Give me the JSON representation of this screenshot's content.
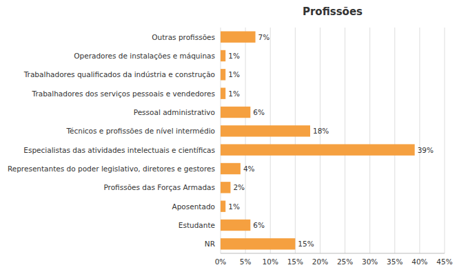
{
  "chart_data": {
    "type": "bar",
    "orientation": "horizontal",
    "title": "Profissões",
    "categories": [
      "NR",
      "Estudante",
      "Aposentado",
      "Profissões das Forças Armadas",
      "Representantes do poder legislativo, diretores e gestores",
      "Especialistas das atividades intelectuais e científicas",
      "Técnicos e profissões de nível intermédio",
      "Pessoal administrativo",
      "Trabalhadores dos serviços pessoais e vendedores",
      "Trabalhadores qualificados da indústria e construção",
      "Operadores de instalações e máquinas",
      "Outras profissões"
    ],
    "values": [
      15,
      6,
      1,
      2,
      4,
      39,
      18,
      6,
      1,
      1,
      1,
      7
    ],
    "value_labels": [
      "15%",
      "6%",
      "1%",
      "2%",
      "4%",
      "39%",
      "18%",
      "6%",
      "1%",
      "1%",
      "1%",
      "7%"
    ],
    "data_labels": true,
    "color": "#F5A040",
    "xlim": [
      0,
      45
    ],
    "xticks": [
      {
        "value": 0,
        "label": "0%"
      },
      {
        "value": 5,
        "label": "5%"
      },
      {
        "value": 10,
        "label": "10%"
      },
      {
        "value": 15,
        "label": "15%"
      },
      {
        "value": 20,
        "label": "20%"
      },
      {
        "value": 25,
        "label": "25%"
      },
      {
        "value": 30,
        "label": "30%"
      },
      {
        "value": 35,
        "label": "35%"
      },
      {
        "value": 40,
        "label": "40%"
      },
      {
        "value": 45,
        "label": "45%"
      }
    ],
    "grid": true
  }
}
